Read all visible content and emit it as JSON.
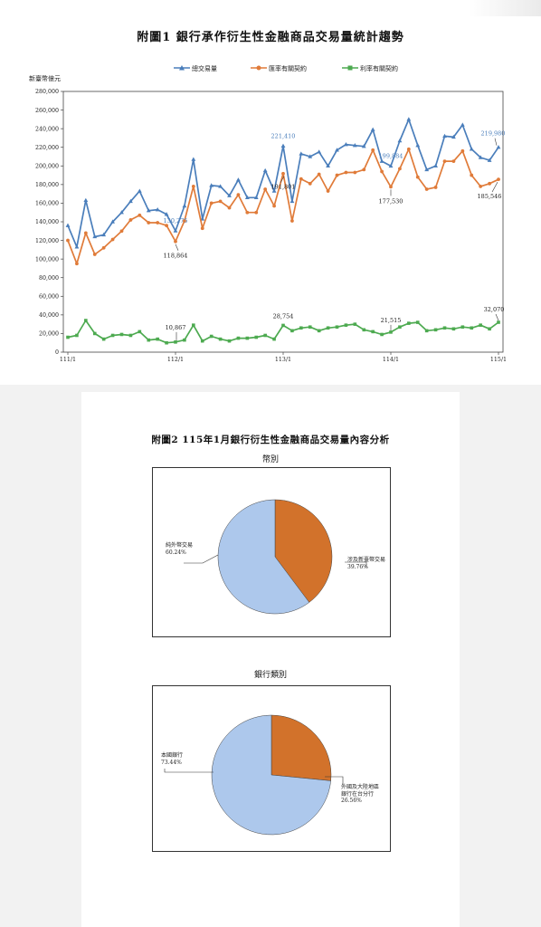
{
  "figure1": {
    "title": "附圖1  銀行承作衍生性金融商品交易量統計趨勢",
    "unit_label": "新臺幣億元",
    "chart_data": {
      "type": "line",
      "ylim": [
        0,
        280000
      ],
      "y_ticks": [
        "0",
        "20,000",
        "40,000",
        "60,000",
        "80,000",
        "100,000",
        "120,000",
        "140,000",
        "160,000",
        "180,000",
        "200,000",
        "220,000",
        "240,000",
        "260,000",
        "280,000"
      ],
      "x_tick_labels": [
        {
          "index": 0,
          "label": "111/1"
        },
        {
          "index": 12,
          "label": "112/1"
        },
        {
          "index": 24,
          "label": "113/1"
        },
        {
          "index": 36,
          "label": "114/1"
        },
        {
          "index": 48,
          "label": "115/1"
        }
      ],
      "grid": false,
      "legend_position": "top",
      "series": [
        {
          "name": "總交易量",
          "color": "#4a7ebb",
          "marker": "triangle",
          "values": [
            136000,
            113000,
            163000,
            124000,
            126000,
            140000,
            150000,
            162000,
            173000,
            152000,
            153000,
            148000,
            130275,
            157000,
            207000,
            143000,
            179000,
            178000,
            168000,
            185000,
            166000,
            166000,
            195000,
            173000,
            221410,
            162000,
            213000,
            210000,
            215000,
            200000,
            217000,
            223000,
            222000,
            221000,
            239000,
            205000,
            199884,
            227000,
            250000,
            222000,
            196000,
            200000,
            232000,
            231000,
            244000,
            218000,
            209000,
            206000,
            219980
          ]
        },
        {
          "name": "匯率有關契約",
          "color": "#e07b39",
          "marker": "circle",
          "values": [
            120000,
            95000,
            128000,
            105000,
            112000,
            121000,
            130000,
            142000,
            147000,
            139000,
            139000,
            136000,
            118864,
            141000,
            178000,
            133000,
            160000,
            162000,
            155000,
            169000,
            150000,
            150000,
            175000,
            157000,
            191801,
            141000,
            186000,
            181000,
            191000,
            173000,
            190000,
            193000,
            193000,
            196000,
            217000,
            194000,
            177530,
            197000,
            218000,
            188000,
            175000,
            177000,
            205000,
            205000,
            216000,
            190000,
            178000,
            181000,
            185546
          ]
        },
        {
          "name": "利率有關契約",
          "color": "#4daa50",
          "marker": "square",
          "values": [
            16000,
            18000,
            34000,
            20000,
            14000,
            18000,
            19000,
            18000,
            22000,
            13000,
            14000,
            10000,
            10867,
            13000,
            29000,
            12000,
            17000,
            14000,
            12000,
            15000,
            15000,
            16000,
            18000,
            14000,
            28754,
            23000,
            26000,
            27000,
            23000,
            26000,
            27000,
            29000,
            30000,
            24000,
            22000,
            19000,
            21515,
            27000,
            31000,
            32000,
            23000,
            24000,
            26000,
            25000,
            27000,
            26000,
            29000,
            25000,
            32070
          ]
        }
      ],
      "annotations": [
        {
          "series": 0,
          "index": 12,
          "text": "130,275",
          "color": "#4a7ebb"
        },
        {
          "series": 0,
          "index": 24,
          "text": "221,410",
          "color": "#4a7ebb"
        },
        {
          "series": 0,
          "index": 36,
          "text": "199,884",
          "color": "#4a7ebb"
        },
        {
          "series": 0,
          "index": 48,
          "text": "219,980",
          "color": "#4a7ebb"
        },
        {
          "series": 1,
          "index": 12,
          "text": "118,864",
          "color": "#222222"
        },
        {
          "series": 1,
          "index": 24,
          "text": "191,801",
          "color": "#222222"
        },
        {
          "series": 1,
          "index": 36,
          "text": "177,530",
          "color": "#222222"
        },
        {
          "series": 1,
          "index": 48,
          "text": "185,546",
          "color": "#222222"
        },
        {
          "series": 2,
          "index": 12,
          "text": "10,867",
          "color": "#222222"
        },
        {
          "series": 2,
          "index": 24,
          "text": "28,754",
          "color": "#222222"
        },
        {
          "series": 2,
          "index": 36,
          "text": "21,515",
          "color": "#222222"
        },
        {
          "series": 2,
          "index": 48,
          "text": "32,070",
          "color": "#222222"
        }
      ]
    }
  },
  "figure2": {
    "title": "附圖2  115年1月銀行衍生性金融商品交易量內容分析",
    "pies": [
      {
        "subtitle": "幣別",
        "chart_data": {
          "type": "pie",
          "slices": [
            {
              "label": "涉及新臺幣交易",
              "value": 39.76,
              "text": "39.76%",
              "color": "#d2722b"
            },
            {
              "label": "純外幣交易",
              "value": 60.24,
              "text": "60.24%",
              "color": "#adc8ec"
            }
          ]
        }
      },
      {
        "subtitle": "銀行類別",
        "chart_data": {
          "type": "pie",
          "slices": [
            {
              "label": "外國及大陸地區銀行在台分行",
              "label_lines": [
                "外國及大陸地區",
                "銀行在台分行"
              ],
              "value": 26.56,
              "text": "26.56%",
              "color": "#d2722b"
            },
            {
              "label": "本國銀行",
              "value": 73.44,
              "text": "73.44%",
              "color": "#adc8ec"
            }
          ]
        }
      }
    ]
  }
}
